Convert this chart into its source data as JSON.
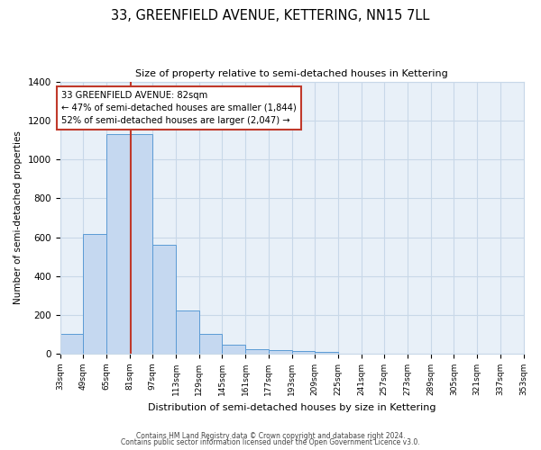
{
  "title": "33, GREENFIELD AVENUE, KETTERING, NN15 7LL",
  "subtitle": "Size of property relative to semi-detached houses in Kettering",
  "xlabel": "Distribution of semi-detached houses by size in Kettering",
  "ylabel": "Number of semi-detached properties",
  "bin_edges": [
    33,
    49,
    65,
    81,
    97,
    113,
    129,
    145,
    161,
    177,
    193,
    209,
    225,
    241,
    257,
    273,
    289,
    305,
    321,
    337,
    353
  ],
  "bar_heights": [
    100,
    615,
    1130,
    1130,
    560,
    225,
    100,
    48,
    22,
    18,
    15,
    10,
    0,
    0,
    0,
    0,
    0,
    0,
    0,
    0
  ],
  "bar_color": "#c5d8f0",
  "bar_edge_color": "#5b9bd5",
  "property_size": 82,
  "vline_color": "#c0392b",
  "annotation_line1": "33 GREENFIELD AVENUE: 82sqm",
  "annotation_line2": "← 47% of semi-detached houses are smaller (1,844)",
  "annotation_line3": "52% of semi-detached houses are larger (2,047) →",
  "annotation_box_color": "#ffffff",
  "annotation_box_edge": "#c0392b",
  "ylim": [
    0,
    1400
  ],
  "yticks": [
    0,
    200,
    400,
    600,
    800,
    1000,
    1200,
    1400
  ],
  "footnote1": "Contains HM Land Registry data © Crown copyright and database right 2024.",
  "footnote2": "Contains public sector information licensed under the Open Government Licence v3.0.",
  "bg_color": "#ffffff",
  "plot_bg_color": "#e8f0f8",
  "grid_color": "#c8d8e8"
}
